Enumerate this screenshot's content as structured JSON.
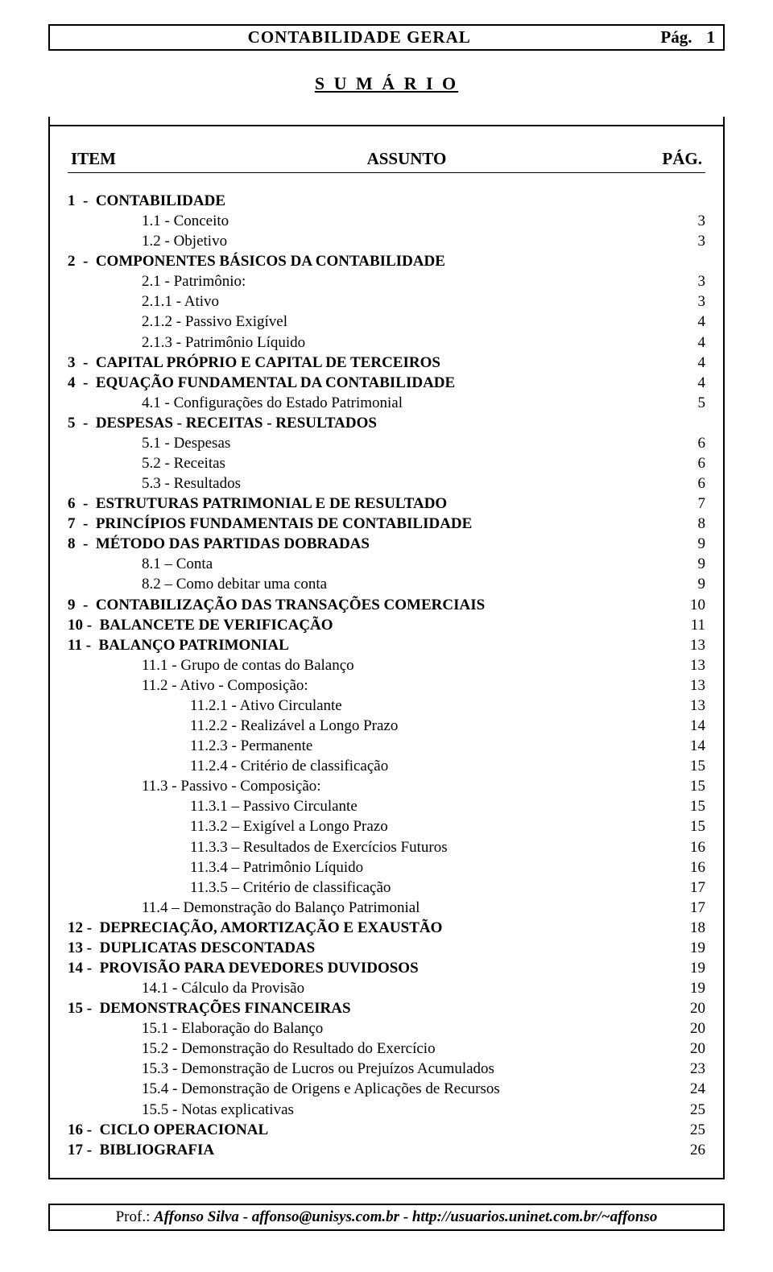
{
  "colors": {
    "text": "#000000",
    "background": "#ffffff",
    "border": "#000000"
  },
  "typography": {
    "body_family": "Times New Roman",
    "body_size_pt": 14,
    "title_size_pt": 16,
    "header_weight": "bold"
  },
  "header": {
    "title": "CONTABILIDADE  GERAL",
    "page_label": "Pág.",
    "page_number": "1"
  },
  "sumario_title": "S U M Á R I O",
  "columns": {
    "item": "ITEM",
    "assunto": "ASSUNTO",
    "pag": "PÁG."
  },
  "toc": [
    {
      "level": 0,
      "label": "1  -  CONTABILIDADE",
      "page": ""
    },
    {
      "level": 1,
      "label": "1.1 - Conceito",
      "page": "3"
    },
    {
      "level": 1,
      "label": "1.2 - Objetivo",
      "page": "3"
    },
    {
      "level": 0,
      "label": "2  -  COMPONENTES BÁSICOS DA CONTABILIDADE",
      "page": ""
    },
    {
      "level": 1,
      "label": "2.1 - Patrimônio:",
      "page": "3"
    },
    {
      "level": 1,
      "label": "2.1.1 - Ativo",
      "page": "3"
    },
    {
      "level": 1,
      "label": "2.1.2 - Passivo Exigível",
      "page": "4"
    },
    {
      "level": 1,
      "label": "2.1.3 - Patrimônio Líquido",
      "page": "4"
    },
    {
      "level": 0,
      "label": "3  -  CAPITAL PRÓPRIO E CAPITAL DE TERCEIROS",
      "page": "4"
    },
    {
      "level": 0,
      "label": "4  -  EQUAÇÃO FUNDAMENTAL DA CONTABILIDADE",
      "page": "4"
    },
    {
      "level": 1,
      "label": "4.1 - Configurações do Estado Patrimonial",
      "page": "5"
    },
    {
      "level": 0,
      "label": "5  -  DESPESAS - RECEITAS - RESULTADOS",
      "page": ""
    },
    {
      "level": 1,
      "label": "5.1 - Despesas",
      "page": "6"
    },
    {
      "level": 1,
      "label": "5.2 - Receitas",
      "page": "6"
    },
    {
      "level": 1,
      "label": "5.3 - Resultados",
      "page": "6"
    },
    {
      "level": 0,
      "label": "6  -  ESTRUTURAS PATRIMONIAL E DE RESULTADO",
      "page": "7"
    },
    {
      "level": 0,
      "label": "7  -  PRINCÍPIOS FUNDAMENTAIS DE CONTABILIDADE",
      "page": "8"
    },
    {
      "level": 0,
      "label": "8  -  MÉTODO DAS PARTIDAS DOBRADAS",
      "page": "9"
    },
    {
      "level": 1,
      "label": "8.1 – Conta",
      "page": "9"
    },
    {
      "level": 1,
      "label": "8.2 – Como debitar uma conta",
      "page": "9"
    },
    {
      "level": 0,
      "label": "9  -  CONTABILIZAÇÃO DAS TRANSAÇÕES COMERCIAIS",
      "page": "10"
    },
    {
      "level": 0,
      "label": "10 -  BALANCETE DE VERIFICAÇÃO",
      "page": "11"
    },
    {
      "level": 0,
      "label": "11 -  BALANÇO PATRIMONIAL",
      "page": "13"
    },
    {
      "level": 1,
      "label": "11.1 - Grupo de contas do Balanço",
      "page": "13"
    },
    {
      "level": 1,
      "label": "11.2 - Ativo - Composição:",
      "page": "13"
    },
    {
      "level": 2,
      "label": "11.2.1 - Ativo Circulante",
      "page": "13"
    },
    {
      "level": 2,
      "label": "11.2.2 - Realizável a Longo Prazo",
      "page": "14"
    },
    {
      "level": 2,
      "label": "11.2.3 - Permanente",
      "page": "14"
    },
    {
      "level": 2,
      "label": "11.2.4 - Critério de classificação",
      "page": "15"
    },
    {
      "level": 1,
      "label": "11.3 - Passivo - Composição:",
      "page": "15"
    },
    {
      "level": 2,
      "label": "11.3.1 – Passivo Circulante",
      "page": "15"
    },
    {
      "level": 2,
      "label": "11.3.2 – Exigível a Longo Prazo",
      "page": "15"
    },
    {
      "level": 2,
      "label": "11.3.3 – Resultados de Exercícios Futuros",
      "page": "16"
    },
    {
      "level": 2,
      "label": "11.3.4 – Patrimônio Líquido",
      "page": "16"
    },
    {
      "level": 2,
      "label": "11.3.5 – Critério de classificação",
      "page": "17"
    },
    {
      "level": 1,
      "label": "11.4 – Demonstração do Balanço Patrimonial",
      "page": "17"
    },
    {
      "level": 0,
      "label": "12 -  DEPRECIAÇÃO, AMORTIZAÇÃO E EXAUSTÃO",
      "page": "18"
    },
    {
      "level": 0,
      "label": "13 -  DUPLICATAS DESCONTADAS",
      "page": "19"
    },
    {
      "level": 0,
      "label": "14 -  PROVISÃO PARA DEVEDORES DUVIDOSOS",
      "page": "19"
    },
    {
      "level": 1,
      "label": "14.1 - Cálculo da Provisão",
      "page": "19"
    },
    {
      "level": 0,
      "label": "15 -  DEMONSTRAÇÕES FINANCEIRAS",
      "page": "20"
    },
    {
      "level": 1,
      "label": "15.1 - Elaboração do Balanço",
      "page": "20"
    },
    {
      "level": 1,
      "label": "15.2 - Demonstração do Resultado do Exercício",
      "page": "20"
    },
    {
      "level": 1,
      "label": "15.3 - Demonstração de Lucros ou Prejuízos Acumulados",
      "page": "23"
    },
    {
      "level": 1,
      "label": "15.4 - Demonstração de Origens e Aplicações de Recursos",
      "page": "24"
    },
    {
      "level": 1,
      "label": "15.5 - Notas explicativas",
      "page": "25"
    },
    {
      "level": 0,
      "label": "16 -  CICLO OPERACIONAL",
      "page": "25"
    },
    {
      "level": 0,
      "label": "17 -  BIBLIOGRAFIA",
      "page": "26"
    }
  ],
  "footer": {
    "prof_label": "Prof.:",
    "author": "Affonso Silva",
    "sep": "   -   ",
    "email": "affonso@unisys.com.br",
    "url": "http://usuarios.uninet.com.br/~affonso"
  }
}
